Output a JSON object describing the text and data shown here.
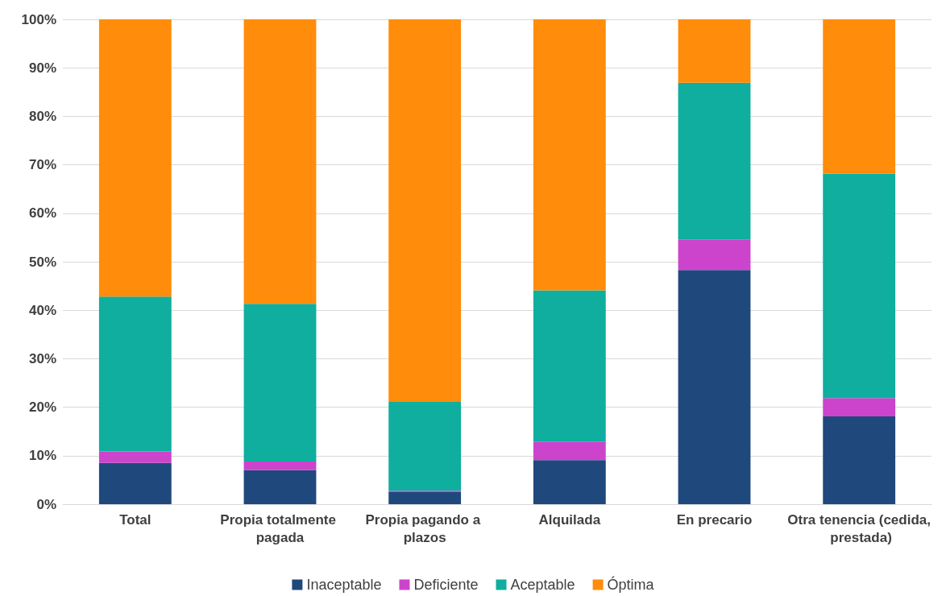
{
  "chart_data": {
    "type": "bar",
    "stacked": true,
    "categories": [
      "Total",
      "Propia totalmente pagada",
      "Propia pagando a plazos",
      "Alquilada",
      "En precario",
      "Otra tenencia (cedida, prestada)"
    ],
    "series": [
      {
        "name": "Inaceptable",
        "color": "#1f497d",
        "values": [
          8.5,
          7.0,
          2.5,
          9.1,
          48.3,
          18.1
        ]
      },
      {
        "name": "Deficiente",
        "color": "#cc44cc",
        "values": [
          2.4,
          1.8,
          0.3,
          3.8,
          6.3,
          3.8
        ]
      },
      {
        "name": "Aceptable",
        "color": "#0fae9e",
        "values": [
          31.9,
          32.5,
          18.3,
          31.2,
          32.3,
          46.3
        ]
      },
      {
        "name": "Óptima",
        "color": "#ff8c0a",
        "values": [
          57.2,
          58.7,
          78.9,
          55.9,
          13.1,
          31.8
        ]
      }
    ],
    "ylim": [
      0,
      100
    ],
    "yticks": [
      {
        "value": 0,
        "label": "0%"
      },
      {
        "value": 10,
        "label": "10%"
      },
      {
        "value": 20,
        "label": "20%"
      },
      {
        "value": 30,
        "label": "30%"
      },
      {
        "value": 40,
        "label": "40%"
      },
      {
        "value": 50,
        "label": "50%"
      },
      {
        "value": 60,
        "label": "60%"
      },
      {
        "value": 70,
        "label": "70%"
      },
      {
        "value": 80,
        "label": "80%"
      },
      {
        "value": 90,
        "label": "90%"
      },
      {
        "value": 100,
        "label": "100%"
      }
    ],
    "grid": "y",
    "legend": "bottom"
  }
}
